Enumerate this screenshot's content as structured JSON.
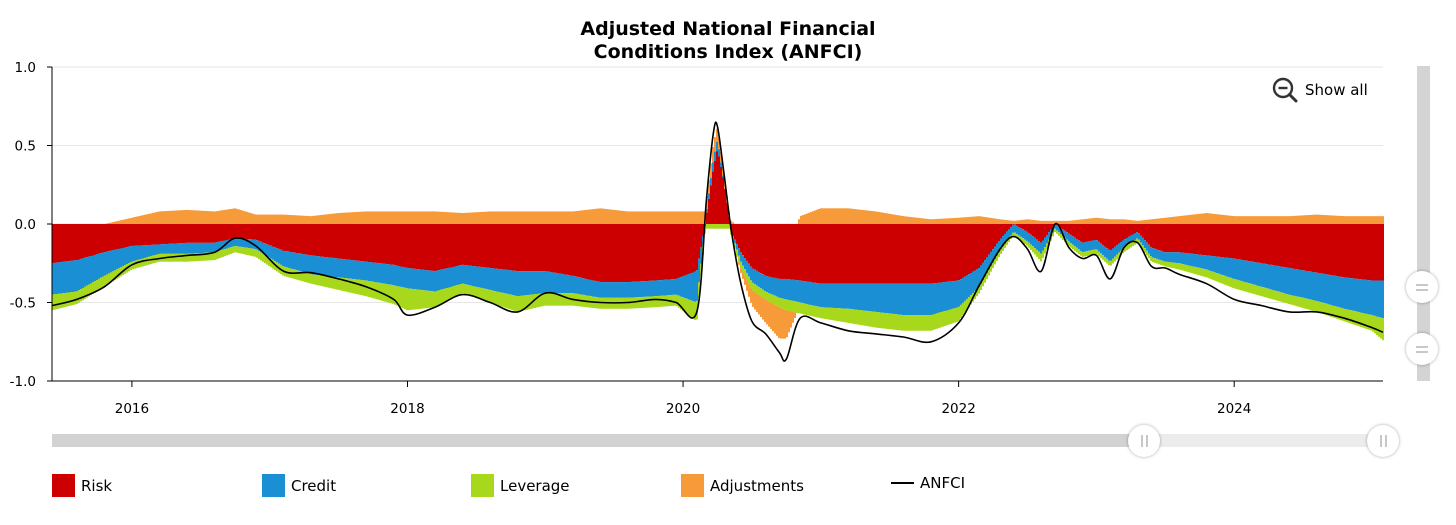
{
  "chart_data": {
    "type": "area",
    "title_lines": [
      "Adjusted National Financial",
      "Conditions Index (ANFCI)"
    ],
    "xlim": [
      2015.42,
      2025.08
    ],
    "ylim": [
      -1.0,
      1.0
    ],
    "y_ticks": [
      {
        "value": 1.0,
        "label": "1.0"
      },
      {
        "value": 0.5,
        "label": "0.5"
      },
      {
        "value": 0.0,
        "label": "0.0"
      },
      {
        "value": -0.5,
        "label": "-0.5"
      },
      {
        "value": -1.0,
        "label": "-1.0"
      }
    ],
    "x_ticks": [
      {
        "value": 2016,
        "label": "2016"
      },
      {
        "value": 2018,
        "label": "2018"
      },
      {
        "value": 2020,
        "label": "2020"
      },
      {
        "value": 2022,
        "label": "2022"
      },
      {
        "value": 2024,
        "label": "2024"
      }
    ],
    "grid": true,
    "legend_position": "bottom",
    "colors": {
      "Risk": "#cc0000",
      "Credit": "#1b8fd3",
      "Leverage": "#a8d81c",
      "Adjustments": "#f79a3a",
      "ANFCI": "#000000"
    },
    "x": [
      2015.42,
      2015.6,
      2015.8,
      2016.0,
      2016.2,
      2016.4,
      2016.6,
      2016.75,
      2016.9,
      2017.1,
      2017.3,
      2017.5,
      2017.7,
      2017.9,
      2018.0,
      2018.2,
      2018.4,
      2018.6,
      2018.8,
      2019.0,
      2019.2,
      2019.4,
      2019.6,
      2019.8,
      2019.95,
      2020.1,
      2020.17,
      2020.22,
      2020.25,
      2020.3,
      2020.35,
      2020.42,
      2020.5,
      2020.6,
      2020.7,
      2020.75,
      2020.85,
      2021.0,
      2021.2,
      2021.4,
      2021.6,
      2021.8,
      2022.0,
      2022.15,
      2022.3,
      2022.4,
      2022.5,
      2022.6,
      2022.7,
      2022.8,
      2022.9,
      2023.0,
      2023.1,
      2023.2,
      2023.3,
      2023.4,
      2023.5,
      2023.6,
      2023.8,
      2024.0,
      2024.2,
      2024.4,
      2024.6,
      2024.8,
      2025.0,
      2025.08
    ],
    "series": [
      {
        "name": "Risk",
        "values": [
          -0.25,
          -0.23,
          -0.18,
          -0.14,
          -0.13,
          -0.12,
          -0.12,
          -0.09,
          -0.1,
          -0.17,
          -0.2,
          -0.22,
          -0.24,
          -0.26,
          -0.28,
          -0.3,
          -0.26,
          -0.28,
          -0.3,
          -0.3,
          -0.33,
          -0.37,
          -0.37,
          -0.36,
          -0.35,
          -0.3,
          0.05,
          0.35,
          0.48,
          0.25,
          -0.05,
          -0.18,
          -0.28,
          -0.33,
          -0.35,
          -0.35,
          -0.36,
          -0.38,
          -0.38,
          -0.38,
          -0.38,
          -0.38,
          -0.36,
          -0.28,
          -0.1,
          0.0,
          -0.05,
          -0.12,
          0.0,
          -0.06,
          -0.12,
          -0.1,
          -0.17,
          -0.1,
          -0.05,
          -0.15,
          -0.18,
          -0.18,
          -0.2,
          -0.22,
          -0.25,
          -0.28,
          -0.31,
          -0.34,
          -0.36,
          -0.36
        ]
      },
      {
        "name": "Credit",
        "values": [
          -0.2,
          -0.2,
          -0.15,
          -0.1,
          -0.06,
          -0.07,
          -0.06,
          -0.05,
          -0.06,
          -0.1,
          -0.12,
          -0.12,
          -0.12,
          -0.13,
          -0.13,
          -0.13,
          -0.12,
          -0.14,
          -0.16,
          -0.14,
          -0.11,
          -0.1,
          -0.1,
          -0.1,
          -0.1,
          -0.2,
          0.02,
          0.06,
          0.06,
          0.0,
          0.0,
          -0.06,
          -0.09,
          -0.1,
          -0.12,
          -0.13,
          -0.14,
          -0.15,
          -0.16,
          -0.18,
          -0.2,
          -0.2,
          -0.17,
          -0.12,
          -0.07,
          -0.05,
          -0.06,
          -0.07,
          -0.03,
          -0.05,
          -0.06,
          -0.06,
          -0.07,
          -0.05,
          -0.04,
          -0.06,
          -0.06,
          -0.07,
          -0.09,
          -0.13,
          -0.15,
          -0.17,
          -0.18,
          -0.2,
          -0.22,
          -0.24
        ]
      },
      {
        "name": "Leverage",
        "values": [
          -0.1,
          -0.08,
          -0.07,
          -0.05,
          -0.05,
          -0.05,
          -0.05,
          -0.04,
          -0.05,
          -0.06,
          -0.06,
          -0.08,
          -0.1,
          -0.12,
          -0.14,
          -0.1,
          -0.06,
          -0.08,
          -0.1,
          -0.08,
          -0.08,
          -0.07,
          -0.07,
          -0.07,
          -0.07,
          -0.12,
          -0.03,
          -0.03,
          -0.03,
          -0.03,
          -0.03,
          -0.04,
          -0.05,
          -0.05,
          -0.06,
          -0.07,
          -0.07,
          -0.07,
          -0.09,
          -0.1,
          -0.1,
          -0.1,
          -0.09,
          -0.04,
          -0.03,
          -0.02,
          -0.03,
          -0.05,
          -0.02,
          -0.03,
          -0.03,
          -0.03,
          -0.03,
          -0.03,
          -0.03,
          -0.03,
          -0.03,
          -0.04,
          -0.05,
          -0.06,
          -0.06,
          -0.06,
          -0.07,
          -0.08,
          -0.1,
          -0.14
        ]
      },
      {
        "name": "Adjustments",
        "values": [
          0.0,
          0.0,
          0.0,
          0.04,
          0.08,
          0.09,
          0.08,
          0.1,
          0.06,
          0.06,
          0.05,
          0.07,
          0.08,
          0.08,
          0.08,
          0.08,
          0.07,
          0.08,
          0.08,
          0.08,
          0.08,
          0.1,
          0.08,
          0.08,
          0.08,
          0.08,
          0.08,
          0.1,
          0.08,
          0.05,
          0.02,
          -0.03,
          -0.1,
          -0.15,
          -0.2,
          -0.18,
          0.05,
          0.1,
          0.1,
          0.08,
          0.05,
          0.03,
          0.04,
          0.05,
          0.03,
          0.02,
          0.03,
          0.02,
          0.02,
          0.02,
          0.03,
          0.04,
          0.03,
          0.03,
          0.02,
          0.03,
          0.04,
          0.05,
          0.07,
          0.05,
          0.05,
          0.05,
          0.06,
          0.05,
          0.05,
          0.05
        ]
      },
      {
        "name": "ANFCI",
        "values": [
          -0.52,
          -0.48,
          -0.4,
          -0.26,
          -0.22,
          -0.2,
          -0.18,
          -0.09,
          -0.14,
          -0.3,
          -0.31,
          -0.35,
          -0.4,
          -0.48,
          -0.58,
          -0.53,
          -0.45,
          -0.5,
          -0.56,
          -0.44,
          -0.48,
          -0.5,
          -0.5,
          -0.48,
          -0.5,
          -0.56,
          0.16,
          0.58,
          0.62,
          0.3,
          -0.04,
          -0.38,
          -0.62,
          -0.7,
          -0.82,
          -0.86,
          -0.6,
          -0.63,
          -0.68,
          -0.7,
          -0.72,
          -0.75,
          -0.63,
          -0.39,
          -0.16,
          -0.08,
          -0.16,
          -0.3,
          0.0,
          -0.15,
          -0.22,
          -0.2,
          -0.35,
          -0.15,
          -0.12,
          -0.27,
          -0.28,
          -0.32,
          -0.38,
          -0.48,
          -0.52,
          -0.56,
          -0.56,
          -0.6,
          -0.66,
          -0.69
        ]
      }
    ]
  },
  "controls": {
    "zoom_reset_label": "Show all"
  },
  "legend": [
    "Risk",
    "Credit",
    "Leverage",
    "Adjustments",
    "ANFCI"
  ]
}
